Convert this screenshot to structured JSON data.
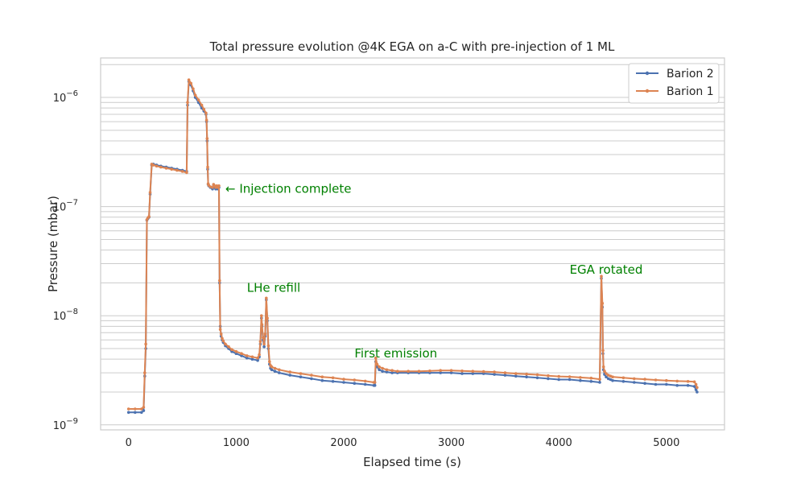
{
  "chart_data": {
    "type": "line",
    "title": "Total pressure evolution @4K EGA on a-C with pre-injection of 1 ML",
    "xlabel": "Elapsed time (s)",
    "ylabel": "Pressure (mbar)",
    "x_scale": "linear",
    "y_scale": "log",
    "xlim": [
      -260,
      5540
    ],
    "ylim": [
      9e-10,
      2.3e-06
    ],
    "x_ticks": [
      0,
      1000,
      2000,
      3000,
      4000,
      5000
    ],
    "x_tick_labels": [
      "0",
      "1000",
      "2000",
      "3000",
      "4000",
      "5000"
    ],
    "y_ticks": [
      1e-09,
      1e-08,
      1e-07,
      1e-06
    ],
    "y_tick_labels": [
      {
        "base": "10",
        "exp": "−9"
      },
      {
        "base": "10",
        "exp": "−8"
      },
      {
        "base": "10",
        "exp": "−7"
      },
      {
        "base": "10",
        "exp": "−6"
      }
    ],
    "grid": true,
    "legend_position": "top-right",
    "series": [
      {
        "name": "Barion 2",
        "color": "#4c72b0",
        "x": [
          0,
          60,
          120,
          140,
          150,
          160,
          170,
          180,
          190,
          200,
          215,
          230,
          260,
          300,
          350,
          400,
          450,
          500,
          540,
          548,
          560,
          580,
          600,
          620,
          650,
          680,
          700,
          720,
          725,
          730,
          735,
          740,
          745,
          760,
          780,
          790,
          800,
          810,
          820,
          830,
          840,
          846,
          852,
          860,
          870,
          880,
          900,
          930,
          960,
          1000,
          1050,
          1100,
          1150,
          1200,
          1215,
          1225,
          1235,
          1240,
          1250,
          1260,
          1270,
          1280,
          1290,
          1300,
          1310,
          1320,
          1330,
          1360,
          1400,
          1500,
          1600,
          1700,
          1800,
          1900,
          2000,
          2100,
          2200,
          2280,
          2290,
          2298,
          2310,
          2330,
          2360,
          2400,
          2450,
          2500,
          2600,
          2700,
          2800,
          2900,
          3000,
          3100,
          3200,
          3300,
          3400,
          3500,
          3600,
          3700,
          3800,
          3900,
          4000,
          4100,
          4200,
          4300,
          4380,
          4395,
          4405,
          4410,
          4415,
          4425,
          4440,
          4460,
          4480,
          4500,
          4600,
          4700,
          4800,
          4900,
          5000,
          5100,
          5200,
          5260,
          5275,
          5285
        ],
        "y": [
          1.3e-09,
          1.3e-09,
          1.3e-09,
          1.35e-09,
          2.8e-09,
          5e-09,
          7.5e-08,
          7.8e-08,
          8e-08,
          1.3e-07,
          2.4e-07,
          2.45e-07,
          2.4e-07,
          2.35e-07,
          2.3e-07,
          2.25e-07,
          2.2e-07,
          2.15e-07,
          2.1e-07,
          8.5e-07,
          1.4e-06,
          1.3e-06,
          1.15e-06,
          1e-06,
          9e-07,
          8e-07,
          7.5e-07,
          7e-07,
          6e-07,
          4e-07,
          2.2e-07,
          1.6e-07,
          1.55e-07,
          1.5e-07,
          1.45e-07,
          1.55e-07,
          1.5e-07,
          1.45e-07,
          1.5e-07,
          1.45e-07,
          1.5e-07,
          2e-08,
          8e-09,
          6.5e-09,
          6e-09,
          5.7e-09,
          5.3e-09,
          5e-09,
          4.7e-09,
          4.5e-09,
          4.3e-09,
          4.1e-09,
          4e-09,
          3.9e-09,
          4.2e-09,
          5.5e-09,
          9.5e-09,
          8e-09,
          6e-09,
          5.2e-09,
          6.5e-09,
          1.4e-08,
          9e-09,
          5e-09,
          3.6e-09,
          3.3e-09,
          3.2e-09,
          3.1e-09,
          3e-09,
          2.85e-09,
          2.75e-09,
          2.65e-09,
          2.55e-09,
          2.5e-09,
          2.45e-09,
          2.4e-09,
          2.35e-09,
          2.3e-09,
          2.3e-09,
          3.8e-09,
          3.4e-09,
          3.2e-09,
          3.1e-09,
          3.05e-09,
          3e-09,
          3e-09,
          3e-09,
          3e-09,
          3e-09,
          3e-09,
          3e-09,
          2.95e-09,
          2.95e-09,
          2.95e-09,
          2.9e-09,
          2.85e-09,
          2.8e-09,
          2.75e-09,
          2.7e-09,
          2.65e-09,
          2.6e-09,
          2.6e-09,
          2.55e-09,
          2.5e-09,
          2.45e-09,
          2.2e-08,
          1.2e-08,
          4.5e-09,
          3.2e-09,
          2.9e-09,
          2.75e-09,
          2.65e-09,
          2.6e-09,
          2.55e-09,
          2.5e-09,
          2.45e-09,
          2.4e-09,
          2.35e-09,
          2.35e-09,
          2.3e-09,
          2.3e-09,
          2.25e-09,
          2.1e-09,
          2e-09
        ]
      },
      {
        "name": "Barion 1",
        "color": "#dd8452",
        "x": [
          0,
          60,
          120,
          140,
          150,
          160,
          170,
          180,
          190,
          200,
          215,
          230,
          260,
          300,
          350,
          400,
          450,
          500,
          540,
          548,
          560,
          580,
          600,
          620,
          650,
          680,
          700,
          720,
          725,
          730,
          735,
          740,
          745,
          760,
          780,
          790,
          800,
          810,
          820,
          830,
          840,
          846,
          852,
          860,
          870,
          880,
          900,
          930,
          960,
          1000,
          1050,
          1100,
          1150,
          1200,
          1215,
          1225,
          1235,
          1240,
          1250,
          1260,
          1270,
          1280,
          1290,
          1300,
          1310,
          1320,
          1330,
          1360,
          1400,
          1500,
          1600,
          1700,
          1800,
          1900,
          2000,
          2100,
          2200,
          2280,
          2290,
          2298,
          2310,
          2330,
          2360,
          2400,
          2450,
          2500,
          2600,
          2700,
          2800,
          2900,
          3000,
          3100,
          3200,
          3300,
          3400,
          3500,
          3600,
          3700,
          3800,
          3900,
          4000,
          4100,
          4200,
          4300,
          4380,
          4395,
          4405,
          4410,
          4415,
          4425,
          4440,
          4460,
          4480,
          4500,
          4600,
          4700,
          4800,
          4900,
          5000,
          5100,
          5200,
          5260,
          5275,
          5285
        ],
        "y": [
          1.4e-09,
          1.4e-09,
          1.4e-09,
          1.45e-09,
          3e-09,
          5.5e-09,
          7.6e-08,
          7.9e-08,
          8.1e-08,
          1.35e-07,
          2.45e-07,
          2.4e-07,
          2.35e-07,
          2.3e-07,
          2.25e-07,
          2.2e-07,
          2.15e-07,
          2.1e-07,
          2.05e-07,
          9e-07,
          1.45e-06,
          1.35e-06,
          1.2e-06,
          1.05e-06,
          9.5e-07,
          8.5e-07,
          7.8e-07,
          7.2e-07,
          6.2e-07,
          4.2e-07,
          2.3e-07,
          1.62e-07,
          1.57e-07,
          1.52e-07,
          1.5e-07,
          1.6e-07,
          1.55e-07,
          1.5e-07,
          1.55e-07,
          1.5e-07,
          1.55e-07,
          2.1e-08,
          7.5e-09,
          6.8e-09,
          6.2e-09,
          5.9e-09,
          5.5e-09,
          5.2e-09,
          4.9e-09,
          4.7e-09,
          4.5e-09,
          4.3e-09,
          4.2e-09,
          4.1e-09,
          4.4e-09,
          5.8e-09,
          1e-08,
          8.3e-09,
          6.3e-09,
          5.5e-09,
          6.8e-09,
          1.45e-08,
          9.5e-09,
          5.3e-09,
          3.8e-09,
          3.5e-09,
          3.4e-09,
          3.3e-09,
          3.2e-09,
          3.05e-09,
          2.95e-09,
          2.85e-09,
          2.75e-09,
          2.7e-09,
          2.62e-09,
          2.58e-09,
          2.52e-09,
          2.45e-09,
          2.45e-09,
          4.1e-09,
          3.6e-09,
          3.4e-09,
          3.3e-09,
          3.2e-09,
          3.15e-09,
          3.1e-09,
          3.1e-09,
          3.1e-09,
          3.12e-09,
          3.15e-09,
          3.15e-09,
          3.12e-09,
          3.1e-09,
          3.08e-09,
          3.05e-09,
          3e-09,
          2.95e-09,
          2.92e-09,
          2.88e-09,
          2.82e-09,
          2.78e-09,
          2.76e-09,
          2.72e-09,
          2.68e-09,
          2.62e-09,
          2.3e-08,
          1.3e-08,
          4.8e-09,
          3.4e-09,
          3.1e-09,
          2.95e-09,
          2.85e-09,
          2.8e-09,
          2.75e-09,
          2.7e-09,
          2.65e-09,
          2.62e-09,
          2.58e-09,
          2.55e-09,
          2.52e-09,
          2.5e-09,
          2.48e-09,
          2.35e-09,
          2.2e-09
        ]
      }
    ],
    "annotations": [
      {
        "text": "← Injection complete",
        "x": 900,
        "y": 1.45e-07,
        "color": "#008000",
        "anchor": "start"
      },
      {
        "text": "LHe refill",
        "x": 1100,
        "y": 1.8e-08,
        "color": "#008000",
        "anchor": "start"
      },
      {
        "text": "First emission",
        "x": 2100,
        "y": 4.5e-09,
        "color": "#008000",
        "anchor": "start"
      },
      {
        "text": "EGA rotated",
        "x": 4100,
        "y": 2.65e-08,
        "color": "#008000",
        "anchor": "start"
      }
    ],
    "grid_color": "#cccccc",
    "axes_color": "#cccccc"
  }
}
